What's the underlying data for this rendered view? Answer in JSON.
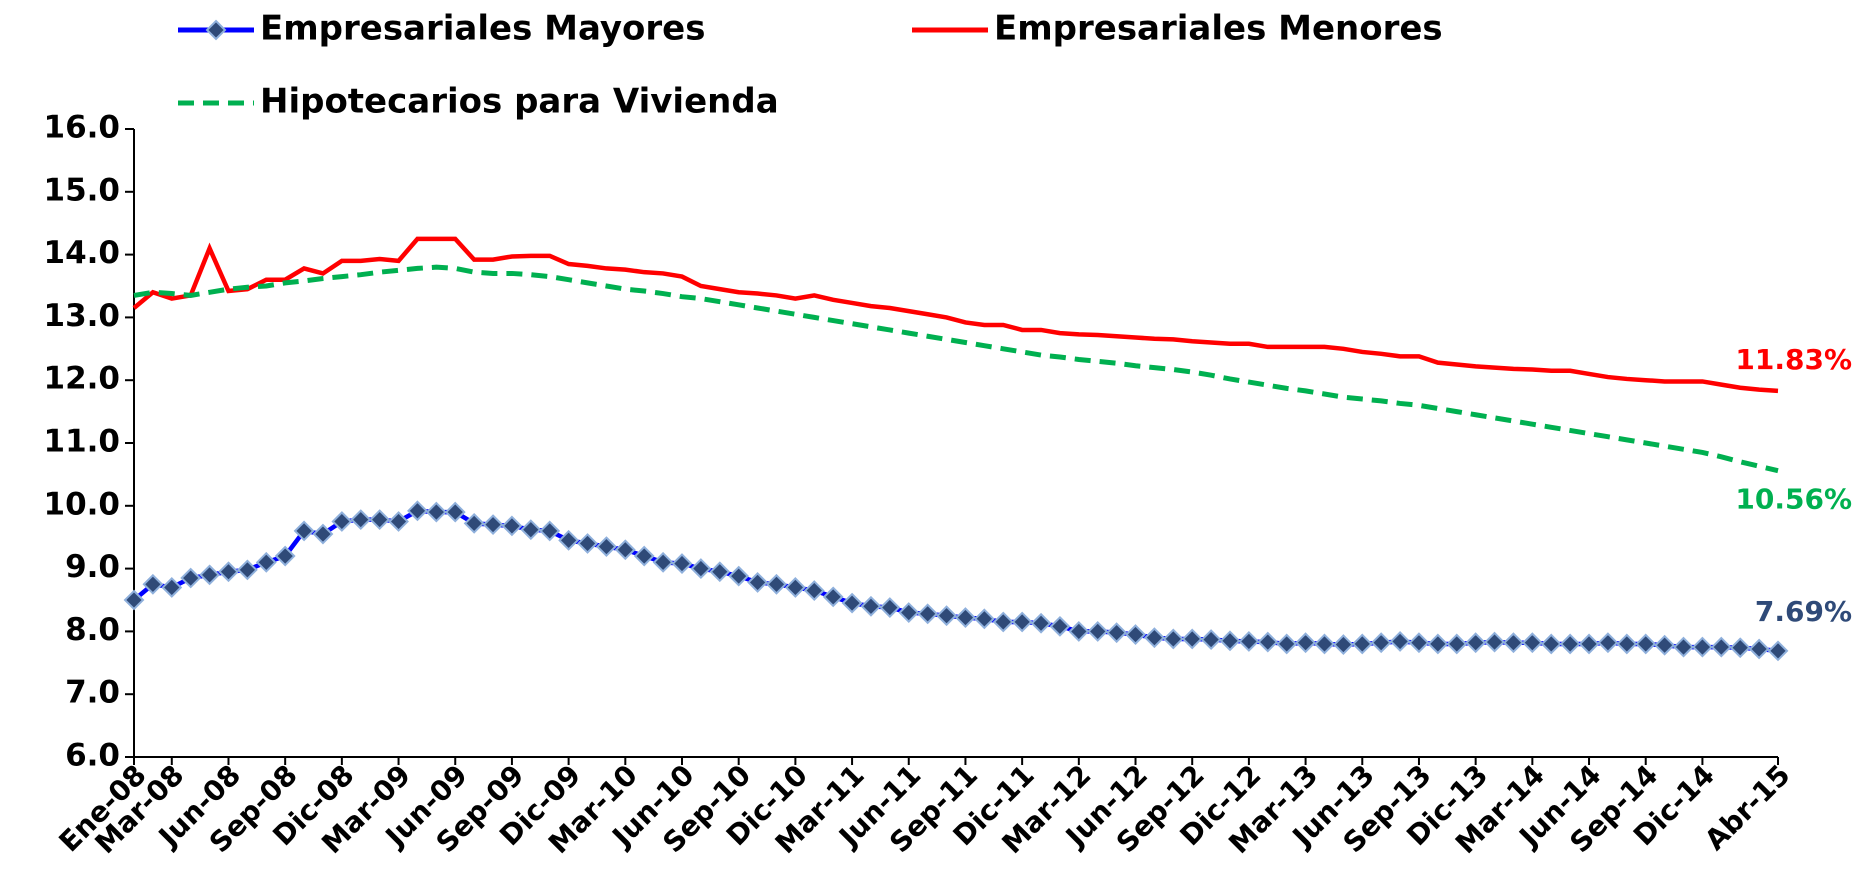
{
  "chart_data": {
    "type": "line",
    "categories": [
      "Ene-08",
      null,
      "Mar-08",
      null,
      null,
      "Jun-08",
      null,
      null,
      "Sep-08",
      null,
      null,
      "Dic-08",
      null,
      null,
      "Mar-09",
      null,
      null,
      "Jun-09",
      null,
      null,
      "Sep-09",
      null,
      null,
      "Dic-09",
      null,
      null,
      "Mar-10",
      null,
      null,
      "Jun-10",
      null,
      null,
      "Sep-10",
      null,
      null,
      "Dic-10",
      null,
      null,
      "Mar-11",
      null,
      null,
      "Jun-11",
      null,
      null,
      "Sep-11",
      null,
      null,
      "Dic-11",
      null,
      null,
      "Mar-12",
      null,
      null,
      "Jun-12",
      null,
      null,
      "Sep-12",
      null,
      null,
      "Dic-12",
      null,
      null,
      "Mar-13",
      null,
      null,
      "Jun-13",
      null,
      null,
      "Sep-13",
      null,
      null,
      "Dic-13",
      null,
      null,
      "Mar-14",
      null,
      null,
      "Jun-14",
      null,
      null,
      "Sep-14",
      null,
      null,
      "Dic-14",
      null,
      null,
      null,
      "Abr-15"
    ],
    "series": [
      {
        "name": "Empresariales Mayores",
        "color": "#0000ff",
        "marker": "diamond",
        "marker_color": "#2f4a78",
        "label_color": "#2f4a78",
        "values": [
          8.5,
          8.75,
          8.7,
          8.85,
          8.9,
          8.95,
          8.98,
          9.1,
          9.2,
          9.6,
          9.55,
          9.75,
          9.78,
          9.78,
          9.75,
          9.92,
          9.9,
          9.9,
          9.72,
          9.7,
          9.68,
          9.62,
          9.6,
          9.45,
          9.4,
          9.35,
          9.3,
          9.2,
          9.1,
          9.08,
          9.0,
          8.95,
          8.88,
          8.78,
          8.75,
          8.7,
          8.65,
          8.55,
          8.45,
          8.4,
          8.38,
          8.3,
          8.28,
          8.25,
          8.22,
          8.2,
          8.15,
          8.15,
          8.13,
          8.08,
          8.0,
          8.0,
          7.98,
          7.95,
          7.9,
          7.88,
          7.88,
          7.87,
          7.85,
          7.84,
          7.83,
          7.8,
          7.82,
          7.8,
          7.79,
          7.8,
          7.82,
          7.84,
          7.82,
          7.8,
          7.8,
          7.82,
          7.83,
          7.82,
          7.82,
          7.8,
          7.8,
          7.8,
          7.82,
          7.8,
          7.8,
          7.78,
          7.75,
          7.75,
          7.75,
          7.74,
          7.72,
          7.69
        ],
        "value_labels": [
          null,
          null,
          null,
          null,
          null,
          null,
          null,
          null,
          null,
          null,
          null,
          null,
          null,
          null,
          null,
          null,
          null,
          null,
          null,
          null,
          null,
          null,
          null,
          null,
          null,
          null,
          null,
          null,
          null,
          null,
          null,
          null,
          null,
          null,
          null,
          null,
          null,
          null,
          null,
          null,
          null,
          null,
          null,
          null,
          null,
          null,
          null,
          null,
          null,
          null,
          null,
          null,
          null,
          null,
          null,
          null,
          null,
          null,
          null,
          null,
          null,
          null,
          null,
          null,
          null,
          null,
          null,
          null,
          null,
          null,
          null,
          null,
          null,
          null,
          null,
          null,
          null,
          null,
          null,
          null,
          null,
          null,
          null,
          null,
          null,
          null,
          null,
          "7.69%"
        ]
      },
      {
        "name": "Empresariales Menores",
        "color": "#ff0000",
        "label_color": "#ff0000",
        "values": [
          13.15,
          13.4,
          13.3,
          13.35,
          14.1,
          13.42,
          13.45,
          13.6,
          13.6,
          13.78,
          13.7,
          13.9,
          13.9,
          13.93,
          13.9,
          14.25,
          14.25,
          14.25,
          13.92,
          13.92,
          13.97,
          13.98,
          13.98,
          13.85,
          13.82,
          13.78,
          13.76,
          13.72,
          13.7,
          13.65,
          13.5,
          13.45,
          13.4,
          13.38,
          13.35,
          13.3,
          13.35,
          13.28,
          13.23,
          13.18,
          13.15,
          13.1,
          13.05,
          13.0,
          12.92,
          12.88,
          12.88,
          12.8,
          12.8,
          12.75,
          12.73,
          12.72,
          12.7,
          12.68,
          12.66,
          12.65,
          12.62,
          12.6,
          12.58,
          12.58,
          12.53,
          12.53,
          12.53,
          12.53,
          12.5,
          12.45,
          12.42,
          12.38,
          12.38,
          12.28,
          12.25,
          12.22,
          12.2,
          12.18,
          12.17,
          12.15,
          12.15,
          12.1,
          12.05,
          12.02,
          12.0,
          11.98,
          11.98,
          11.98,
          11.93,
          11.88,
          11.85,
          11.83
        ],
        "value_labels": [
          null,
          null,
          null,
          null,
          null,
          null,
          null,
          null,
          null,
          null,
          null,
          null,
          null,
          null,
          null,
          null,
          null,
          null,
          null,
          null,
          null,
          null,
          null,
          null,
          null,
          null,
          null,
          null,
          null,
          null,
          null,
          null,
          null,
          null,
          null,
          null,
          null,
          null,
          null,
          null,
          null,
          null,
          null,
          null,
          null,
          null,
          null,
          null,
          null,
          null,
          null,
          null,
          null,
          null,
          null,
          null,
          null,
          null,
          null,
          null,
          null,
          null,
          null,
          null,
          null,
          null,
          null,
          null,
          null,
          null,
          null,
          null,
          null,
          null,
          null,
          null,
          null,
          null,
          null,
          null,
          null,
          null,
          null,
          null,
          null,
          null,
          null,
          "11.83%"
        ]
      },
      {
        "name": "Hipotecarios para Vivienda",
        "color": "#00b050",
        "dash": true,
        "label_color": "#00b050",
        "values": [
          13.35,
          13.4,
          13.38,
          13.35,
          13.4,
          13.45,
          13.48,
          13.5,
          13.55,
          13.58,
          13.62,
          13.65,
          13.68,
          13.72,
          13.75,
          13.78,
          13.8,
          13.78,
          13.72,
          13.7,
          13.7,
          13.68,
          13.65,
          13.6,
          13.55,
          13.5,
          13.45,
          13.42,
          13.38,
          13.33,
          13.3,
          13.25,
          13.2,
          13.15,
          13.1,
          13.05,
          13.0,
          12.95,
          12.9,
          12.85,
          12.8,
          12.75,
          12.7,
          12.65,
          12.6,
          12.55,
          12.5,
          12.45,
          12.4,
          12.37,
          12.33,
          12.3,
          12.27,
          12.23,
          12.2,
          12.17,
          12.13,
          12.08,
          12.02,
          11.97,
          11.92,
          11.87,
          11.83,
          11.78,
          11.73,
          11.7,
          11.67,
          11.63,
          11.6,
          11.55,
          11.5,
          11.45,
          11.4,
          11.35,
          11.3,
          11.25,
          11.2,
          11.15,
          11.1,
          11.05,
          11.0,
          10.95,
          10.9,
          10.85,
          10.78,
          10.7,
          10.63,
          10.56
        ],
        "value_labels": [
          null,
          null,
          null,
          null,
          null,
          null,
          null,
          null,
          null,
          null,
          null,
          null,
          null,
          null,
          null,
          null,
          null,
          null,
          null,
          null,
          null,
          null,
          null,
          null,
          null,
          null,
          null,
          null,
          null,
          null,
          null,
          null,
          null,
          null,
          null,
          null,
          null,
          null,
          null,
          null,
          null,
          null,
          null,
          null,
          null,
          null,
          null,
          null,
          null,
          null,
          null,
          null,
          null,
          null,
          null,
          null,
          null,
          null,
          null,
          null,
          null,
          null,
          null,
          null,
          null,
          null,
          null,
          null,
          null,
          null,
          null,
          null,
          null,
          null,
          null,
          null,
          null,
          null,
          null,
          null,
          null,
          null,
          null,
          null,
          null,
          null,
          null,
          "10.56%"
        ]
      }
    ],
    "ylim": [
      6,
      16
    ],
    "yticks": [
      {
        "value": 6,
        "label": "6.0"
      },
      {
        "value": 7,
        "label": "7.0"
      },
      {
        "value": 8,
        "label": "8.0"
      },
      {
        "value": 9,
        "label": "9.0"
      },
      {
        "value": 10,
        "label": "10.0"
      },
      {
        "value": 11,
        "label": "11.0"
      },
      {
        "value": 12,
        "label": "12.0"
      },
      {
        "value": 13,
        "label": "13.0"
      },
      {
        "value": 14,
        "label": "14.0"
      },
      {
        "value": 15,
        "label": "15.0"
      },
      {
        "value": 16,
        "label": "16.0"
      }
    ],
    "grid": false
  }
}
